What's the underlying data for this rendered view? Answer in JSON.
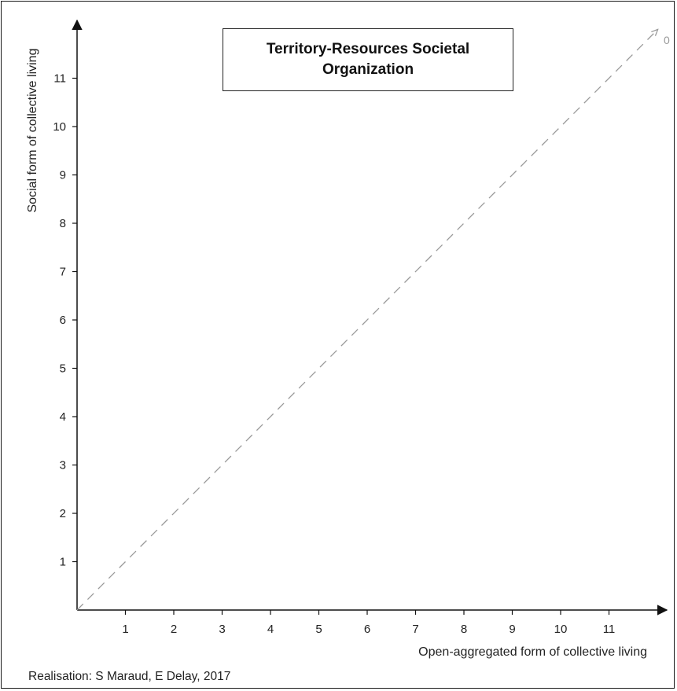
{
  "chart_data": {
    "type": "line",
    "title": "Territory-Resources Societal Organization",
    "xlabel": "Open-aggregated form of collective living",
    "ylabel": "Social form of collective living",
    "xlim": [
      0,
      12
    ],
    "ylim": [
      0,
      12
    ],
    "x_ticks": [
      "1",
      "2",
      "3",
      "4",
      "5",
      "6",
      "7",
      "8",
      "9",
      "10",
      "11"
    ],
    "y_ticks": [
      "1",
      "2",
      "3",
      "4",
      "5",
      "6",
      "7",
      "8",
      "9",
      "10",
      "11"
    ],
    "grid": false,
    "series": [
      {
        "style": "dashed",
        "color": "#999999",
        "x": [
          0,
          12
        ],
        "y": [
          0,
          12
        ],
        "end_label": "0"
      }
    ],
    "colors": {
      "axis": "#111111",
      "reference_line": "#999999"
    }
  },
  "caption": "Realisation: S Maraud, E Delay, 2017"
}
